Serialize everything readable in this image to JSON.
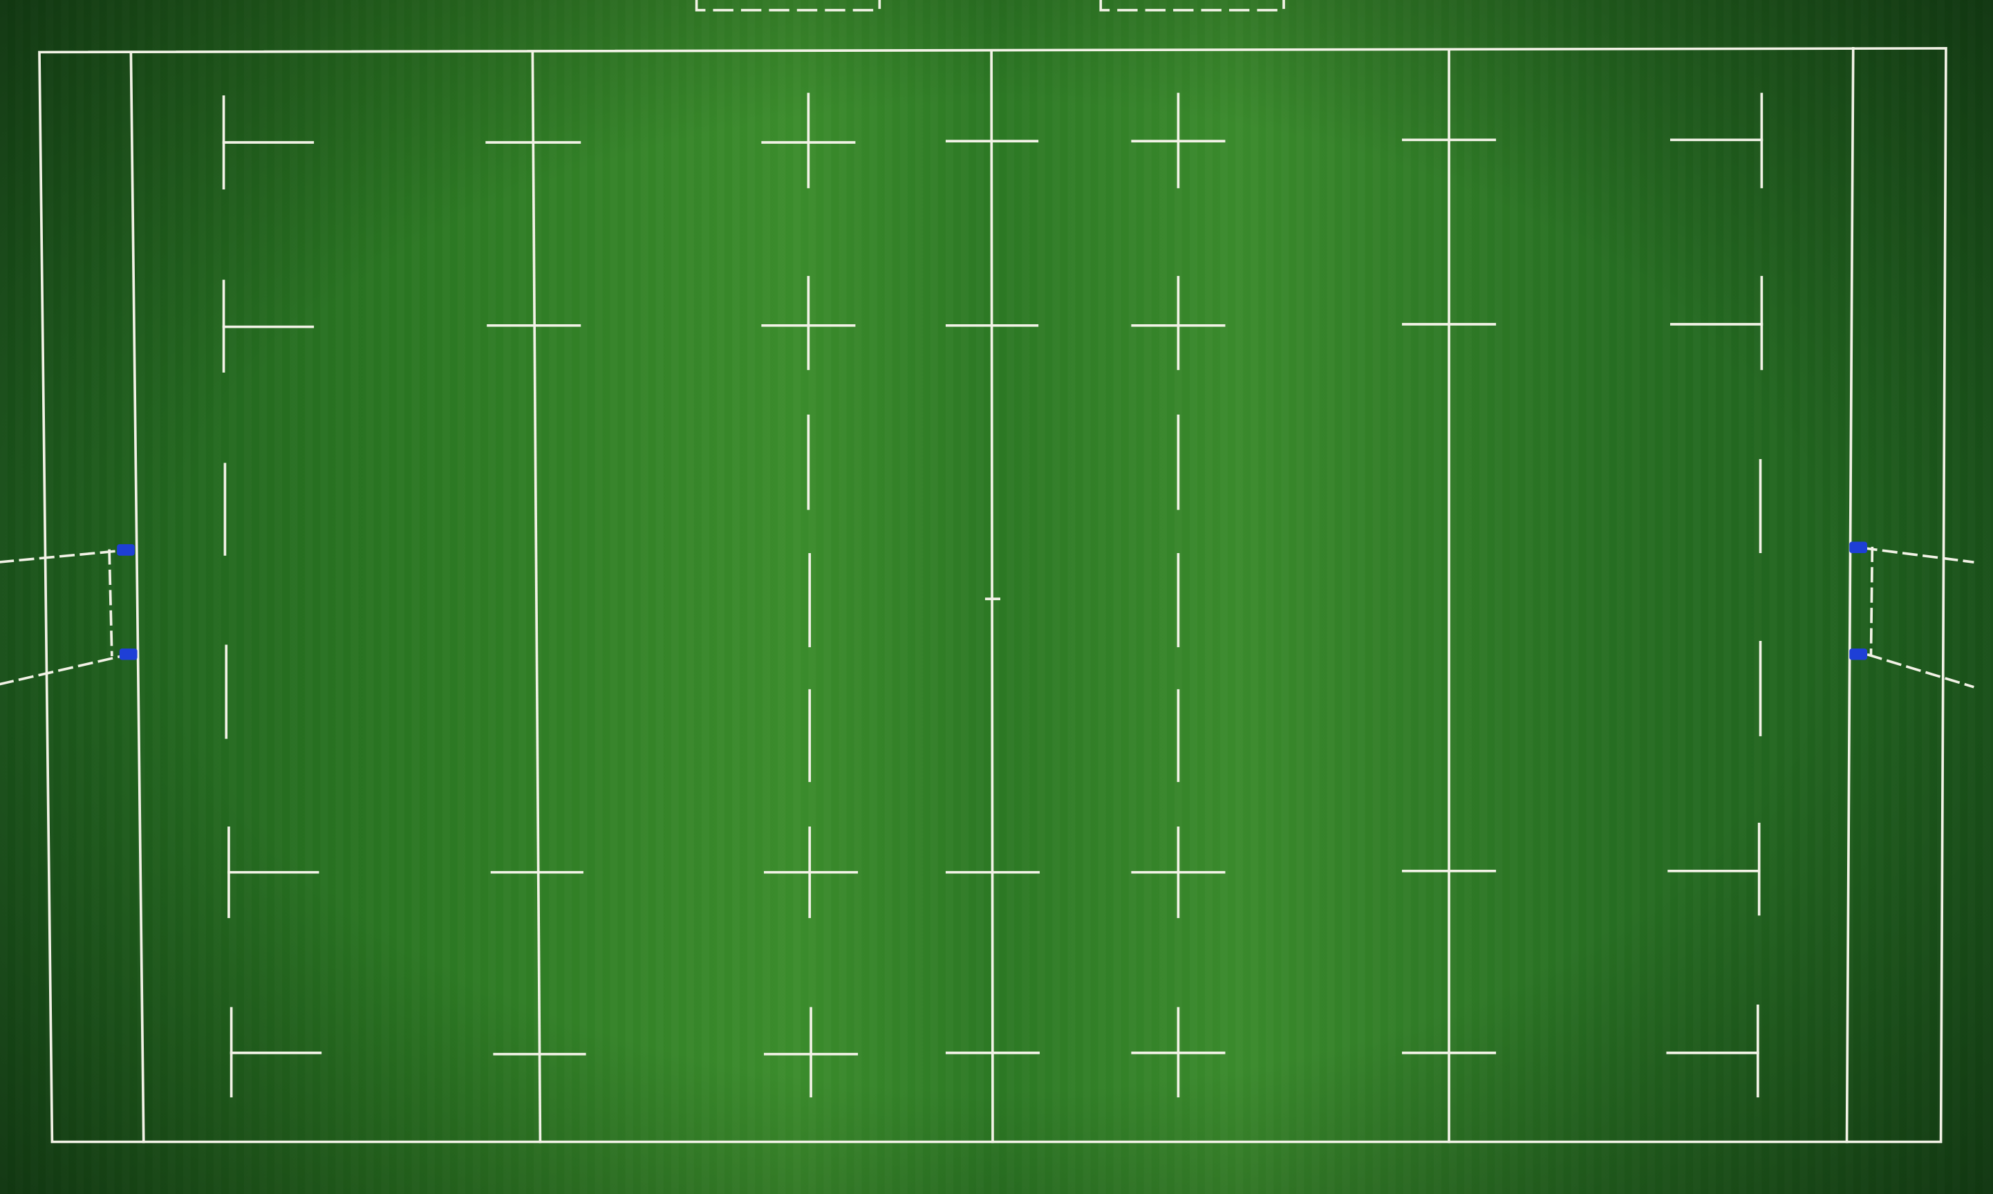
{
  "scene": {
    "subject": "aerial-rugby-pitch",
    "colors": {
      "grass_dark": "#14471a",
      "grass_mid": "#2a7a22",
      "grass_light": "#3f9530",
      "surround": "#0f3d14",
      "line": "#f2f2e6",
      "post_padding": "#1e3fd6"
    }
  }
}
